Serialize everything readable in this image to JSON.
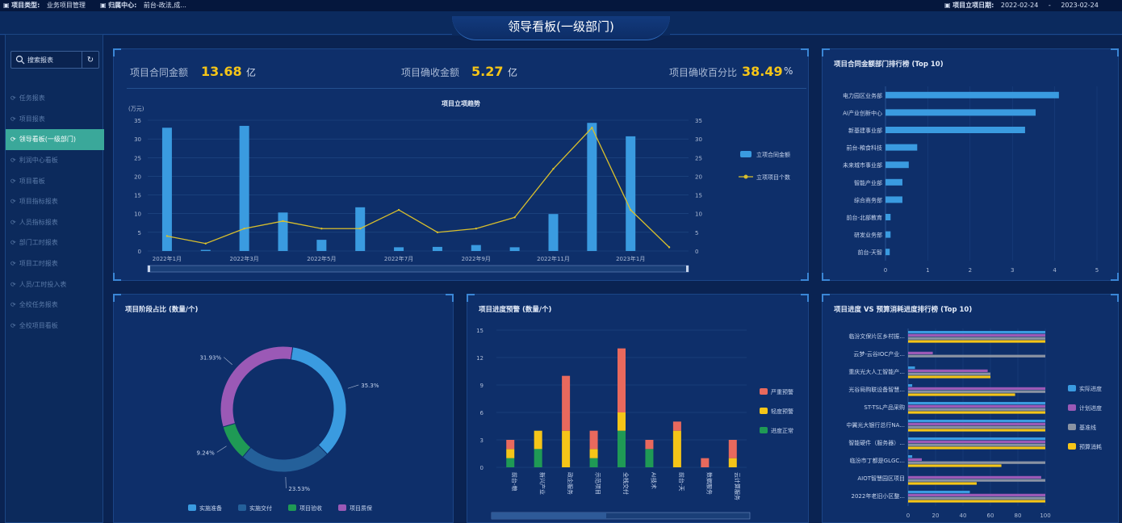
{
  "topbar": {
    "project_type_label": "项目类型:",
    "project_type_value": "业务项目管理",
    "owner_label": "归属中心:",
    "owner_value": "前台-政法,成...",
    "date_label": "项目立项日期:",
    "date_start": "2022-02-24",
    "date_sep": "-",
    "date_end": "2023-02-24"
  },
  "page_title": "领导看板(一级部门)",
  "sidebar": {
    "search_placeholder": "搜索报表",
    "refresh_icon": "refresh-icon",
    "items": [
      {
        "label": "任务报表",
        "active": false
      },
      {
        "label": "项目报表",
        "active": false
      },
      {
        "label": "领导看板(一级部门)",
        "active": true
      },
      {
        "label": "利润中心看板",
        "active": false
      },
      {
        "label": "项目看板",
        "active": false
      },
      {
        "label": "项目指标报表",
        "active": false
      },
      {
        "label": "人员指标报表",
        "active": false
      },
      {
        "label": "部门工时报表",
        "active": false
      },
      {
        "label": "项目工时报表",
        "active": false
      },
      {
        "label": "人员/工时投入表",
        "active": false
      },
      {
        "label": "全校任务报表",
        "active": false
      },
      {
        "label": "全校项目看板",
        "active": false
      }
    ]
  },
  "kpis": [
    {
      "label": "项目合同金额",
      "value": "13.68",
      "unit": "亿"
    },
    {
      "label": "项目确收金额",
      "value": "5.27",
      "unit": "亿"
    },
    {
      "label": "项目确收百分比",
      "value": "38.49",
      "unit": "%"
    }
  ],
  "panels": {
    "rank_title": "项目合同金额部门排行榜 (Top 10)",
    "stage_title": "项目阶段占比 (数量/个)",
    "warn_title": "项目进度预警 (数量/个)",
    "progress_title": "项目进度 VS 预算消耗进度排行榜 (Top 10)"
  },
  "chart_data": [
    {
      "type": "bar",
      "title": "项目立项趋势",
      "ylabel": "(万元)",
      "categories": [
        "2022年1月",
        "2022年2月",
        "2022年3月",
        "2022年4月",
        "2022年5月",
        "2022年6月",
        "2022年7月",
        "2022年8月",
        "2022年9月",
        "2022年10月",
        "2022年11月",
        "2022年12月",
        "2023年1月",
        "2023年2月"
      ],
      "x_tick_labels": [
        "2022年1月",
        "2022年3月",
        "2022年5月",
        "2022年7月",
        "2022年9月",
        "2022年11月",
        "2023年1月"
      ],
      "ylim": [
        0,
        35
      ],
      "yticks": [
        0,
        5,
        10,
        15,
        20,
        25,
        30,
        35
      ],
      "series": [
        {
          "name": "立项合同金额",
          "type": "bar",
          "color": "#3a9be0",
          "values": [
            33,
            0.3,
            33.5,
            10.3,
            3,
            11.7,
            1,
            1.1,
            1.6,
            1,
            9.9,
            34.3,
            30.7,
            0
          ]
        },
        {
          "name": "立项项目个数",
          "type": "line",
          "color": "#d9bf2c",
          "values": [
            4,
            2,
            6,
            8,
            6,
            6,
            11,
            5,
            6,
            9,
            22,
            33,
            11,
            1
          ]
        }
      ]
    },
    {
      "type": "bar",
      "orientation": "horizontal",
      "title": "项目合同金额部门排行榜 (Top 10)",
      "categories": [
        "电力园区业务部",
        "AI产业创新中心",
        "新基建事业部",
        "前台-粮食科技",
        "未来城市事业部",
        "智能产业部",
        "综合商务部",
        "前台-北部教育",
        "研发业务部",
        "前台-天智"
      ],
      "values": [
        4.1,
        3.55,
        3.3,
        0.75,
        0.55,
        0.4,
        0.4,
        0.12,
        0.12,
        0.1
      ],
      "xlim": [
        0,
        5
      ],
      "xticks": [
        0,
        1,
        2,
        3,
        4,
        5
      ],
      "color": "#3a9be0"
    },
    {
      "type": "pie",
      "title": "项目阶段占比 (数量/个)",
      "slices": [
        {
          "name": "实施准备",
          "value": 35.3,
          "label": "35.3%",
          "color": "#3a9be0"
        },
        {
          "name": "实施交付",
          "value": 23.53,
          "label": "23.53%",
          "color": "#24609a"
        },
        {
          "name": "项目验收",
          "value": 9.24,
          "label": "9.24%",
          "color": "#1f9a55"
        },
        {
          "name": "项目质保",
          "value": 31.93,
          "label": "31.93%",
          "color": "#9b59b6"
        }
      ]
    },
    {
      "type": "bar",
      "stacked": true,
      "title": "项目进度预警 (数量/个)",
      "categories": [
        "前台-粮",
        "新兴产业",
        "政企服务",
        "示范项目",
        "全栈交付",
        "AI技术",
        "前台-天",
        "数据服务",
        "云计算服务"
      ],
      "ylim": [
        0,
        15
      ],
      "yticks": [
        0,
        3,
        6,
        9,
        12,
        15
      ],
      "series": [
        {
          "name": "进度正常",
          "color": "#1f9a55",
          "values": [
            1,
            2,
            0,
            1,
            4,
            2,
            0,
            0,
            0
          ]
        },
        {
          "name": "轻度预警",
          "color": "#f5c518",
          "values": [
            1,
            2,
            4,
            1,
            2,
            0,
            4,
            0,
            1
          ]
        },
        {
          "name": "严重预警",
          "color": "#e8695d",
          "values": [
            1,
            0,
            6,
            2,
            7,
            1,
            1,
            1,
            2
          ]
        }
      ]
    },
    {
      "type": "bar",
      "orientation": "horizontal",
      "title": "项目进度 VS 预算消耗进度排行榜 (Top 10)",
      "categories": [
        "临汾文保片区乡村振...",
        "云梦-云谷IOC产业...",
        "重庆光大人工智能产...",
        "光谷局购联设备智慧...",
        "ST-TSL产品采购",
        "中翼光大银行总行NA...",
        "智能硬件（服务器）...",
        "临汾市丁都是GLGC...",
        "AIOT智慧园区项目",
        "2022年老旧小区整..."
      ],
      "xlim": [
        0,
        100
      ],
      "xticks": [
        0,
        20,
        40,
        60,
        80,
        100
      ],
      "series": [
        {
          "name": "实际进度",
          "color": "#3a9be0",
          "values": [
            100,
            0,
            5,
            3,
            100,
            100,
            100,
            3,
            0,
            45
          ]
        },
        {
          "name": "计划进度",
          "color": "#9b59b6",
          "values": [
            100,
            18,
            58,
            100,
            100,
            100,
            100,
            10,
            97,
            100
          ]
        },
        {
          "name": "基准线",
          "color": "#8a93a3",
          "values": [
            100,
            100,
            60,
            100,
            100,
            100,
            100,
            100,
            100,
            100
          ]
        },
        {
          "name": "预算消耗",
          "color": "#f5c518",
          "values": [
            100,
            0,
            60,
            78,
            100,
            100,
            100,
            68,
            50,
            100
          ]
        }
      ]
    }
  ]
}
